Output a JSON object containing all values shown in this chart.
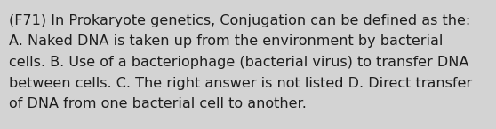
{
  "lines": [
    "(F71) In Prokaryote genetics, Conjugation can be defined as the:",
    "A. Naked DNA is taken up from the environment by bacterial",
    "cells. B. Use of a bacteriophage (bacterial virus) to transfer DNA",
    "between cells. C. The right answer is not listed D. Direct transfer",
    "of DNA from one bacterial cell to another."
  ],
  "background_color": "#d3d3d3",
  "text_color": "#1e1e1e",
  "font_size": 11.5,
  "fig_width": 5.58,
  "fig_height": 1.46,
  "dpi": 100
}
